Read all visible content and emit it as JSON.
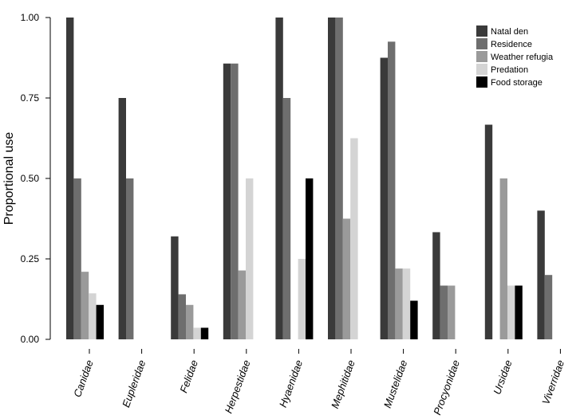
{
  "chart_data": {
    "type": "bar",
    "xlabel": "",
    "ylabel": "Proportional use",
    "ylim": [
      0,
      1
    ],
    "yticks": [
      "0.00",
      "0.25",
      "0.50",
      "0.75",
      "1.00"
    ],
    "ytick_values": [
      0,
      0.25,
      0.5,
      0.75,
      1.0
    ],
    "grid": false,
    "legend_position": "top-right",
    "categories": [
      "Canidae",
      "Eupleridae",
      "Felidae",
      "Herpestidae",
      "Hyaenidae",
      "Mephitidae",
      "Mustelidae",
      "Procyonidae",
      "Ursidae",
      "Viverridae"
    ],
    "series": [
      {
        "name": "Natal den",
        "color": "#3a3a3a",
        "values": [
          1.0,
          0.75,
          0.32,
          0.857,
          1.0,
          1.0,
          0.875,
          0.333,
          0.667,
          0.4
        ]
      },
      {
        "name": "Residence",
        "color": "#6e6e6e",
        "values": [
          0.5,
          0.5,
          0.14,
          0.857,
          0.75,
          1.0,
          0.925,
          0.167,
          0.0,
          0.2
        ]
      },
      {
        "name": "Weather refugia",
        "color": "#9a9a9a",
        "values": [
          0.21,
          0.0,
          0.107,
          0.214,
          0.0,
          0.375,
          0.22,
          0.167,
          0.5,
          0.0
        ]
      },
      {
        "name": "Predation",
        "color": "#d4d4d4",
        "values": [
          0.143,
          0.0,
          0.036,
          0.5,
          0.25,
          0.625,
          0.22,
          0.0,
          0.167,
          0.0
        ]
      },
      {
        "name": "Food storage",
        "color": "#000000",
        "values": [
          0.107,
          0.0,
          0.036,
          0.0,
          0.5,
          0.0,
          0.12,
          0.0,
          0.167,
          0.0
        ]
      }
    ]
  }
}
